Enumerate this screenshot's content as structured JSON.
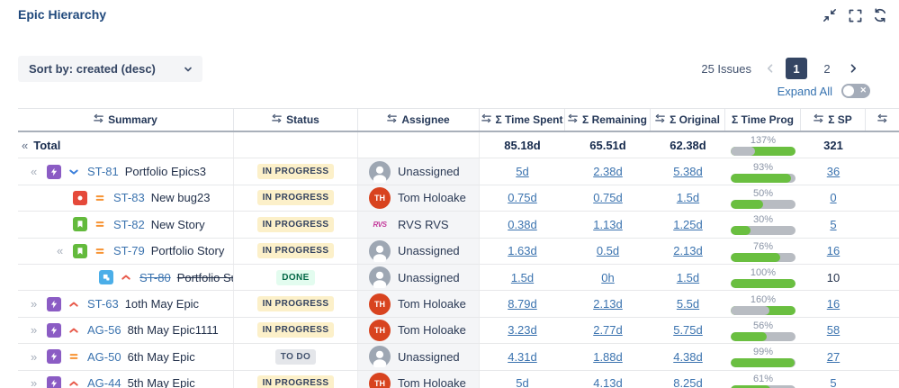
{
  "header": {
    "title": "Epic Hierarchy"
  },
  "toolbar": {
    "sort_label": "Sort by: created (desc)",
    "issues_count": "25 Issues",
    "pages": [
      "1",
      "2"
    ],
    "current_page": "1",
    "expand_all_label": "Expand All"
  },
  "colors": {
    "accent_blue": "#3b73af",
    "progress_green": "#6abf40",
    "progress_gray": "#b8bcc2",
    "status_inprogress_bg": "#fcf0c9",
    "status_done_bg": "#e3fcef",
    "status_todo_bg": "#e4e6ea",
    "epic_purple": "#8b5cc4",
    "bug_red": "#e5493a",
    "story_green": "#63ba3c",
    "subtask_blue": "#4baee8",
    "priority_high_red": "#e8594a",
    "priority_medium_orange": "#f79232",
    "priority_low_blue": "#3b7fdb",
    "avatar_red": "#d8431f",
    "avatar_gray": "#9ea7b3",
    "selected_page_navy": "#344563"
  },
  "table": {
    "columns": [
      {
        "name": "summary",
        "label": "Summary",
        "sort_icon": true
      },
      {
        "name": "status",
        "label": "Status",
        "sort_icon": true
      },
      {
        "name": "assignee",
        "label": "Assignee",
        "sort_icon": true
      },
      {
        "name": "time-spent",
        "label": "Σ Time Spent",
        "sort_icon": true
      },
      {
        "name": "remaining",
        "label": "Σ Remaining",
        "sort_icon": true
      },
      {
        "name": "original",
        "label": "Σ Original",
        "sort_icon": true
      },
      {
        "name": "time-prog",
        "label": "Σ Time Prog",
        "sort_icon": false
      },
      {
        "name": "sp",
        "label": "Σ SP",
        "sort_icon": true
      },
      {
        "name": "extra",
        "label": "",
        "sort_icon": true
      }
    ],
    "total": {
      "expander": "«",
      "label": "Total",
      "time_spent": "85.18d",
      "remaining": "65.51d",
      "original": "62.38d",
      "progress": 137,
      "sp": "321"
    },
    "rows": [
      {
        "indent": 1,
        "expander": "«",
        "type": "epic",
        "priority": "low",
        "key": "ST-81",
        "summary": "Portfolio Epics3",
        "struck": false,
        "status": "IN PROGRESS",
        "status_kind": "inprogress",
        "assignee": "Unassigned",
        "avatar": "unassigned",
        "time_spent": "5d",
        "remaining": "2.38d",
        "original": "5.38d",
        "progress": 93,
        "sp": "36",
        "sp_link": true
      },
      {
        "indent": 2,
        "expander": "",
        "type": "bug",
        "priority": "medium",
        "key": "ST-83",
        "summary": "New bug23",
        "struck": false,
        "status": "IN PROGRESS",
        "status_kind": "inprogress",
        "assignee": "Tom Holoake",
        "avatar": "th",
        "time_spent": "0.75d",
        "remaining": "0.75d",
        "original": "1.5d",
        "progress": 50,
        "sp": "0",
        "sp_link": true
      },
      {
        "indent": 2,
        "expander": "",
        "type": "story",
        "priority": "medium",
        "key": "ST-82",
        "summary": "New Story",
        "struck": false,
        "status": "IN PROGRESS",
        "status_kind": "inprogress",
        "assignee": "RVS RVS",
        "avatar": "rvs",
        "time_spent": "0.38d",
        "remaining": "1.13d",
        "original": "1.25d",
        "progress": 30,
        "sp": "5",
        "sp_link": true
      },
      {
        "indent": 2,
        "expander": "«",
        "type": "story",
        "priority": "medium",
        "key": "ST-79",
        "summary": "Portfolio Story",
        "struck": false,
        "status": "IN PROGRESS",
        "status_kind": "inprogress",
        "assignee": "Unassigned",
        "avatar": "unassigned",
        "time_spent": "1.63d",
        "remaining": "0.5d",
        "original": "2.13d",
        "progress": 76,
        "sp": "16",
        "sp_link": true
      },
      {
        "indent": 3,
        "expander": "",
        "type": "subtask",
        "priority": "high",
        "key": "ST-80",
        "summary": "Portfolio Subtask new",
        "struck": true,
        "status": "DONE",
        "status_kind": "done",
        "assignee": "Unassigned",
        "avatar": "unassigned",
        "time_spent": "1.5d",
        "remaining": "0h",
        "original": "1.5d",
        "progress": 100,
        "sp": "10",
        "sp_link": false
      },
      {
        "indent": 1,
        "expander": "»",
        "type": "epic",
        "priority": "high",
        "key": "ST-63",
        "summary": "1oth May Epic",
        "struck": false,
        "status": "IN PROGRESS",
        "status_kind": "inprogress",
        "assignee": "Tom Holoake",
        "avatar": "th",
        "time_spent": "8.79d",
        "remaining": "2.13d",
        "original": "5.5d",
        "progress": 160,
        "sp": "16",
        "sp_link": true
      },
      {
        "indent": 1,
        "expander": "»",
        "type": "epic",
        "priority": "high",
        "key": "AG-56",
        "summary": "8th May Epic1111",
        "struck": false,
        "status": "IN PROGRESS",
        "status_kind": "inprogress",
        "assignee": "Tom Holoake",
        "avatar": "th",
        "time_spent": "3.23d",
        "remaining": "2.77d",
        "original": "5.75d",
        "progress": 56,
        "sp": "58",
        "sp_link": true
      },
      {
        "indent": 1,
        "expander": "»",
        "type": "epic",
        "priority": "medium",
        "key": "AG-50",
        "summary": "6th May Epic",
        "struck": false,
        "status": "TO DO",
        "status_kind": "todo",
        "assignee": "Unassigned",
        "avatar": "unassigned",
        "time_spent": "4.31d",
        "remaining": "1.88d",
        "original": "4.38d",
        "progress": 99,
        "sp": "27",
        "sp_link": true
      },
      {
        "indent": 1,
        "expander": "»",
        "type": "epic",
        "priority": "high",
        "key": "AG-44",
        "summary": "5th May Epic",
        "struck": false,
        "status": "IN PROGRESS",
        "status_kind": "inprogress",
        "assignee": "Tom Holoake",
        "avatar": "th",
        "time_spent": "5d",
        "remaining": "4.13d",
        "original": "8.25d",
        "progress": 61,
        "sp": "5",
        "sp_link": true
      }
    ]
  }
}
